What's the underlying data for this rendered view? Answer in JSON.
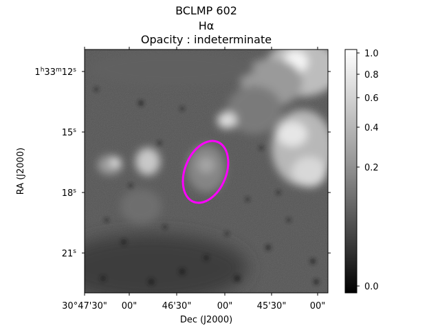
{
  "figure": {
    "title_lines": [
      "BCLMP 602",
      "Hα",
      "Opacity : indeterminate"
    ],
    "xlabel": "Dec (J2000)",
    "ylabel": "RA (J2000)",
    "x_ticks": [
      "30°47'30\"",
      "00\"",
      "46'30\"",
      "00\"",
      "45'30\"",
      "00\""
    ],
    "y_ticks": [
      {
        "main": "1",
        "sup1": "h",
        "mid1": "33",
        "sup2": "m",
        "mid2": "12",
        "sup3": "s"
      },
      {
        "main": "15",
        "sup3": "s"
      },
      {
        "main": "18",
        "sup3": "s"
      },
      {
        "main": "21",
        "sup3": "s"
      }
    ],
    "colorbar_ticks": [
      "1.0",
      "0.8",
      "0.6",
      "0.4",
      "0.2",
      "0.0"
    ],
    "colormap": "grayscale",
    "ellipse_color": "#ff00ff"
  }
}
